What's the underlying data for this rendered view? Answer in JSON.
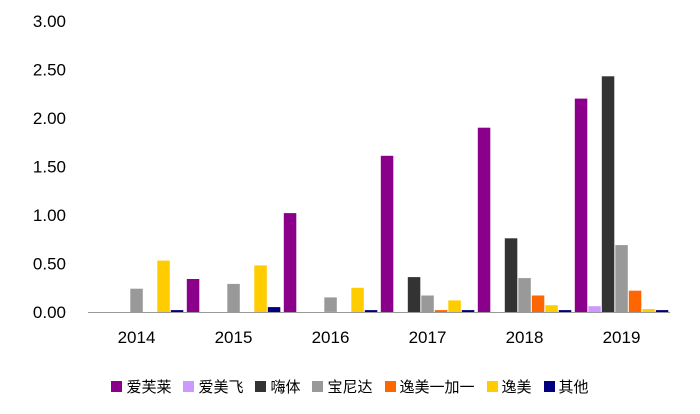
{
  "chart_data": {
    "type": "bar",
    "title": "",
    "xlabel": "",
    "ylabel": "",
    "ylim": [
      0,
      3
    ],
    "yticks": [
      "0.00",
      "0.50",
      "1.00",
      "1.50",
      "2.00",
      "2.50",
      "3.00"
    ],
    "categories": [
      "2014",
      "2015",
      "2016",
      "2017",
      "2018",
      "2019"
    ],
    "legend_position": "bottom",
    "grid": false,
    "series": [
      {
        "name": "爱芙莱",
        "color": "#8B008B",
        "values": [
          0.0,
          0.34,
          1.02,
          1.61,
          1.9,
          2.2
        ]
      },
      {
        "name": "爱美飞",
        "color": "#CC99FF",
        "values": [
          0.0,
          0.0,
          0.0,
          0.0,
          0.0,
          0.06
        ]
      },
      {
        "name": "嗨体",
        "color": "#333333",
        "values": [
          0.0,
          0.0,
          0.0,
          0.36,
          0.76,
          2.43
        ]
      },
      {
        "name": "宝尼达",
        "color": "#999999",
        "values": [
          0.24,
          0.29,
          0.15,
          0.17,
          0.35,
          0.69
        ]
      },
      {
        "name": "逸美一加一",
        "color": "#FF6600",
        "values": [
          0.0,
          0.0,
          0.0,
          0.02,
          0.17,
          0.22
        ]
      },
      {
        "name": "逸美",
        "color": "#FFCC00",
        "values": [
          0.53,
          0.48,
          0.25,
          0.12,
          0.07,
          0.03
        ]
      },
      {
        "name": "其他",
        "color": "#000080",
        "values": [
          0.02,
          0.05,
          0.02,
          0.02,
          0.02,
          0.02
        ]
      }
    ]
  }
}
